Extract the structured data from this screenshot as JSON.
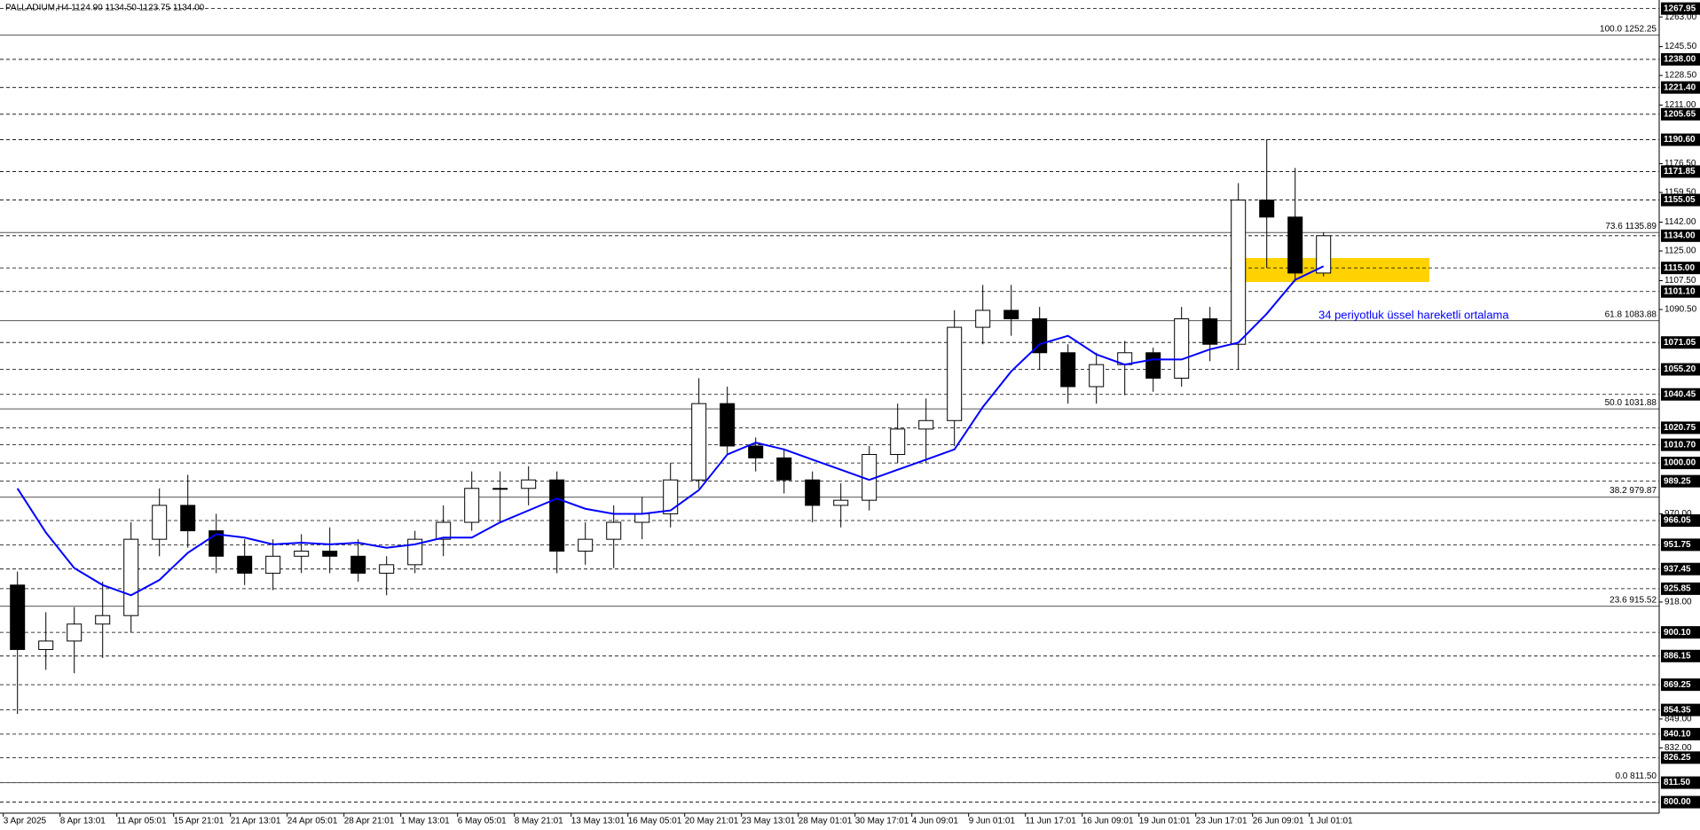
{
  "chart_data": {
    "type": "candlestick",
    "title": "PALLADIUM,H4  1124.90 1134.50 1123.75 1134.00",
    "categories": [
      "3 Apr 2025",
      null,
      "8 Apr 13:01",
      null,
      "11 Apr 05:01",
      null,
      "15 Apr 21:01",
      null,
      "21 Apr 13:01",
      null,
      "24 Apr 05:01",
      null,
      "28 Apr 21:01",
      null,
      "1 May 13:01",
      null,
      "6 May 05:01",
      null,
      "8 May 21:01",
      null,
      "13 May 13:01",
      null,
      "16 May 05:01",
      null,
      "20 May 21:01",
      null,
      "23 May 13:01",
      null,
      "28 May 01:01",
      null,
      "30 May 17:01",
      null,
      "4 Jun 09:01",
      null,
      "9 Jun 01:01",
      null,
      "11 Jun 17:01",
      null,
      "16 Jun 09:01",
      null,
      "19 Jun 01:01",
      null,
      "23 Jun 17:01",
      null,
      "26 Jun 09:01",
      null,
      "1 Jul 01:01"
    ],
    "open": [
      928,
      890,
      895,
      905,
      910,
      955,
      975,
      960,
      945,
      935,
      945,
      948,
      945,
      935,
      940,
      955,
      965,
      985,
      985,
      990,
      948,
      955,
      965,
      970,
      990,
      1035,
      1010,
      1003,
      990,
      975,
      978,
      1005,
      1020,
      1025,
      1080,
      1090,
      1085,
      1065,
      1045,
      1058,
      1065,
      1050,
      1085,
      1070,
      1155,
      1145,
      1112
    ],
    "high": [
      936,
      912,
      915,
      930,
      965,
      985,
      993,
      970,
      955,
      955,
      958,
      962,
      955,
      945,
      960,
      975,
      995,
      995,
      998,
      995,
      965,
      975,
      980,
      1000,
      1050,
      1045,
      1015,
      1008,
      995,
      988,
      1010,
      1035,
      1038,
      1090,
      1105,
      1105,
      1092,
      1070,
      1065,
      1072,
      1068,
      1092,
      1092,
      1165,
      1191,
      1174,
      1136
    ],
    "low": [
      852,
      878,
      876,
      885,
      900,
      945,
      950,
      935,
      928,
      925,
      935,
      935,
      930,
      922,
      935,
      945,
      960,
      965,
      975,
      935,
      940,
      938,
      955,
      962,
      985,
      1005,
      995,
      982,
      965,
      962,
      972,
      1000,
      1000,
      1010,
      1070,
      1075,
      1055,
      1035,
      1035,
      1040,
      1042,
      1045,
      1060,
      1055,
      1115,
      1107,
      1110
    ],
    "close": [
      890,
      895,
      905,
      910,
      955,
      975,
      960,
      945,
      935,
      945,
      948,
      945,
      935,
      940,
      955,
      965,
      985,
      985,
      990,
      948,
      955,
      965,
      970,
      990,
      1035,
      1010,
      1003,
      990,
      975,
      978,
      1005,
      1020,
      1025,
      1080,
      1090,
      1085,
      1065,
      1045,
      1058,
      1065,
      1050,
      1085,
      1070,
      1155,
      1145,
      1112,
      1134
    ],
    "ema": {
      "name": "34 periyotluk üssel hareketli ortalama",
      "color": "#0000ff",
      "values": [
        985,
        959,
        938,
        928,
        922,
        931,
        947,
        958,
        956,
        952,
        953,
        952,
        953,
        950,
        952,
        956,
        956,
        965,
        972,
        979,
        973,
        970,
        970,
        972,
        984,
        1005,
        1012,
        1008,
        1002,
        996,
        990,
        996,
        1002,
        1008,
        1033,
        1054,
        1070,
        1075,
        1064,
        1058,
        1061,
        1061,
        1067,
        1071,
        1088,
        1108,
        1116
      ]
    },
    "ylim": [
      793.5,
      1273
    ],
    "yticks": [
      {
        "value": 1263,
        "label": "1263.00"
      },
      {
        "value": 1245.5,
        "label": "1245.50"
      },
      {
        "value": 1228.5,
        "label": "1228.50"
      },
      {
        "value": 1211,
        "label": "1211.00"
      },
      {
        "value": 1176.5,
        "label": "1176.50"
      },
      {
        "value": 1159.5,
        "label": "1159.50"
      },
      {
        "value": 1142,
        "label": "1142.00"
      },
      {
        "value": 1125,
        "label": "1125.00"
      },
      {
        "value": 1107.5,
        "label": "1107.50"
      },
      {
        "value": 1090.5,
        "label": "1090.50"
      },
      {
        "value": 970,
        "label": "970.00"
      },
      {
        "value": 918,
        "label": "918.00"
      },
      {
        "value": 849,
        "label": "849.00"
      },
      {
        "value": 832,
        "label": "832.00"
      }
    ],
    "levels": [
      {
        "value": 1267.95,
        "label": "1267.95"
      },
      {
        "value": 1238,
        "label": "1238.00"
      },
      {
        "value": 1221.4,
        "label": "1221.40"
      },
      {
        "value": 1205.65,
        "label": "1205.65"
      },
      {
        "value": 1190.6,
        "label": "1190.60"
      },
      {
        "value": 1171.85,
        "label": "1171.85"
      },
      {
        "value": 1155.05,
        "label": "1155.05"
      },
      {
        "value": 1134,
        "label": "1134.00"
      },
      {
        "value": 1115,
        "label": "1115.00"
      },
      {
        "value": 1101.1,
        "label": "1101.10"
      },
      {
        "value": 1071.05,
        "label": "1071.05"
      },
      {
        "value": 1055.2,
        "label": "1055.20"
      },
      {
        "value": 1040.45,
        "label": "1040.45"
      },
      {
        "value": 1020.75,
        "label": "1020.75"
      },
      {
        "value": 1010.7,
        "label": "1010.70"
      },
      {
        "value": 1000,
        "label": "1000.00"
      },
      {
        "value": 989.25,
        "label": "989.25"
      },
      {
        "value": 966.05,
        "label": "966.05"
      },
      {
        "value": 951.75,
        "label": "951.75"
      },
      {
        "value": 937.45,
        "label": "937.45"
      },
      {
        "value": 925.85,
        "label": "925.85"
      },
      {
        "value": 900.1,
        "label": "900.10"
      },
      {
        "value": 886.15,
        "label": "886.15"
      },
      {
        "value": 869.25,
        "label": "869.25"
      },
      {
        "value": 854.35,
        "label": "854.35"
      },
      {
        "value": 840.1,
        "label": "840.10"
      },
      {
        "value": 826.25,
        "label": "826.25"
      },
      {
        "value": 811.5,
        "label": "811.50"
      },
      {
        "value": 800,
        "label": "800.00"
      }
    ],
    "fib": [
      {
        "value": 1252.25,
        "label": "100.0 1252.25"
      },
      {
        "value": 1135.89,
        "label": "73.6 1135.89"
      },
      {
        "value": 1083.88,
        "label": "61.8 1083.88"
      },
      {
        "value": 1031.88,
        "label": "50.0 1031.88"
      },
      {
        "value": 979.87,
        "label": "38.2 979.87"
      },
      {
        "value": 915.52,
        "label": "23.6 915.52"
      },
      {
        "value": 811.5,
        "label": "0.0 811.50"
      }
    ]
  }
}
